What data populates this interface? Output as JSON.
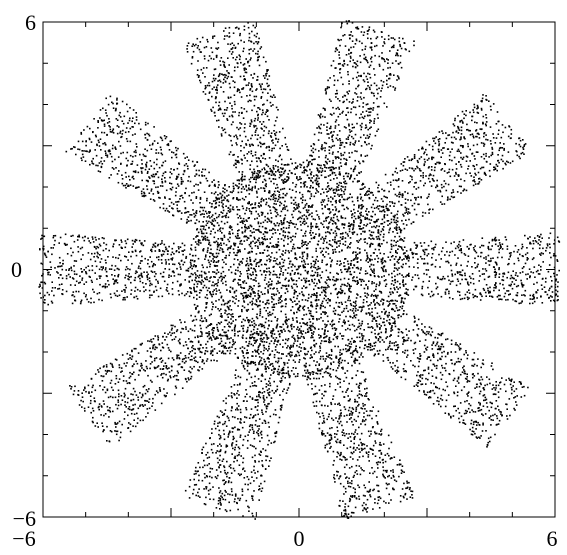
{
  "chart_data": {
    "type": "scatter",
    "title": "",
    "xlabel": "",
    "ylabel": "",
    "xlim": [
      -6,
      6
    ],
    "ylim": [
      -6,
      6
    ],
    "x_tick_labels": [
      "−6",
      "0",
      "6"
    ],
    "y_tick_labels": [
      "6",
      "0",
      "−6"
    ],
    "x_tick_values": [
      -6,
      0,
      6
    ],
    "y_tick_values": [
      6,
      0,
      -6
    ],
    "grid": false,
    "legend": "none",
    "marker_color": "#000000",
    "shape": "10-armed star: dense core of radius ~2.6, arms extending to radius ~6",
    "core_radius": 2.6,
    "arm_count": 10,
    "arm_angles_deg": [
      0,
      36,
      72,
      108,
      144,
      180,
      216,
      252,
      288,
      324
    ],
    "arm_inner_radius": 2.4,
    "arm_outer_radius": 6.1,
    "arm_half_width": 0.75,
    "point_count": 9000
  }
}
